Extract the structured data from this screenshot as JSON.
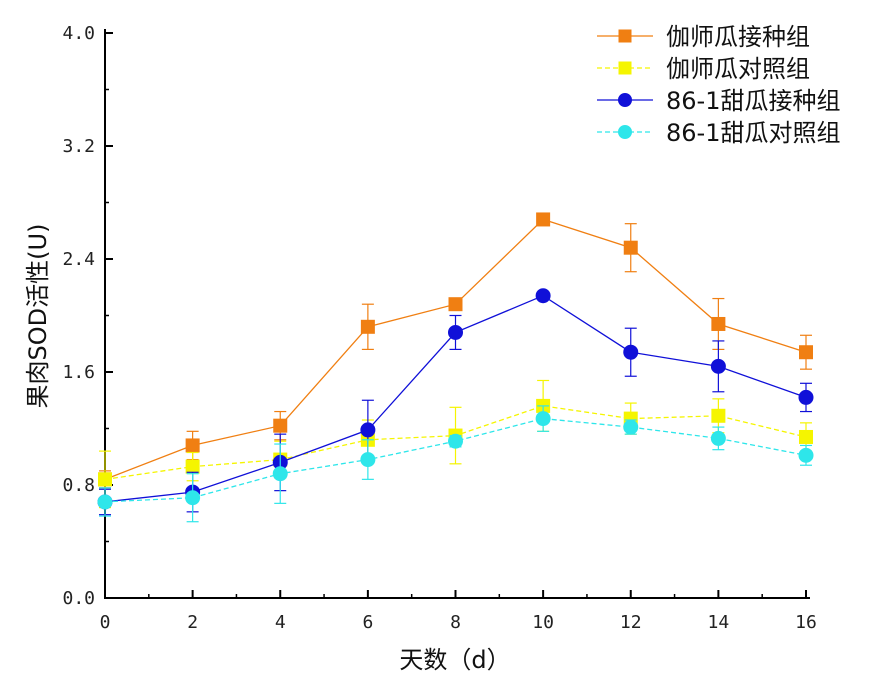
{
  "chart_data": {
    "type": "line",
    "xlabel": "天数（d）",
    "ylabel": "果肉SOD活性(U)",
    "x": [
      0,
      2,
      4,
      6,
      8,
      10,
      12,
      14,
      16
    ],
    "xticks": [
      "0",
      "2",
      "4",
      "6",
      "8",
      "10",
      "12",
      "14",
      "16"
    ],
    "yticks": [
      "0.0",
      "0.8",
      "1.6",
      "2.4",
      "3.2",
      "4.0"
    ],
    "xlim": [
      0,
      16
    ],
    "ylim": [
      0,
      4.0
    ],
    "grid": false,
    "legend_position": "top-right",
    "series": [
      {
        "name": "伽师瓜接种组",
        "color": "#f07f12",
        "marker": "square",
        "dashed": false,
        "values": [
          0.84,
          1.08,
          1.22,
          1.92,
          2.08,
          2.68,
          2.48,
          1.94,
          1.74
        ],
        "errors": [
          0.06,
          0.1,
          0.1,
          0.16,
          0.02,
          0.03,
          0.17,
          0.18,
          0.12
        ]
      },
      {
        "name": "伽师瓜对照组",
        "color": "#f5f500",
        "marker": "square",
        "dashed": true,
        "values": [
          0.84,
          0.93,
          0.98,
          1.12,
          1.15,
          1.36,
          1.27,
          1.29,
          1.14
        ],
        "errors": [
          0.2,
          0.1,
          0.13,
          0.14,
          0.2,
          0.18,
          0.11,
          0.12,
          0.1
        ]
      },
      {
        "name": "86-1甜瓜接种组",
        "color": "#1010d8",
        "marker": "circle",
        "dashed": false,
        "values": [
          0.68,
          0.75,
          0.96,
          1.19,
          1.88,
          2.14,
          1.74,
          1.64,
          1.42
        ],
        "errors": [
          0.09,
          0.14,
          0.2,
          0.21,
          0.12,
          0.02,
          0.17,
          0.18,
          0.1
        ]
      },
      {
        "name": "86-1甜瓜对照组",
        "color": "#2ee6ea",
        "marker": "circle",
        "dashed": true,
        "values": [
          0.68,
          0.71,
          0.88,
          0.98,
          1.11,
          1.27,
          1.21,
          1.13,
          1.01
        ],
        "errors": [
          0.1,
          0.17,
          0.21,
          0.14,
          0.04,
          0.09,
          0.05,
          0.08,
          0.07
        ]
      }
    ]
  }
}
